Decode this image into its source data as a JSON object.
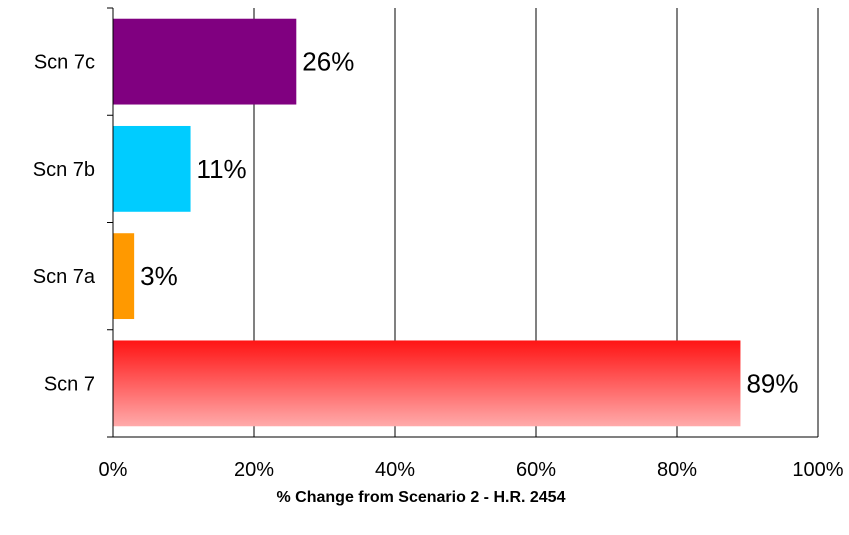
{
  "chart_data": {
    "type": "bar",
    "orientation": "horizontal",
    "title": "",
    "xlabel": "% Change from Scenario 2 - H.R. 2454",
    "ylabel": "",
    "xlim": [
      0,
      100
    ],
    "x_ticks": [
      "0%",
      "20%",
      "40%",
      "60%",
      "80%",
      "100%"
    ],
    "grid": "vertical",
    "legend": "none",
    "categories": [
      "Scn 7",
      "Scn 7a",
      "Scn 7b",
      "Scn 7c"
    ],
    "values": [
      89,
      3,
      11,
      26
    ],
    "data_labels": [
      "89%",
      "3%",
      "11%",
      "26%"
    ],
    "colors": {
      "Scn 7": [
        "#ff1414",
        "#ffaaaa"
      ],
      "Scn 7a": "#ff9900",
      "Scn 7b": "#00ccff",
      "Scn 7c": "#800080"
    }
  }
}
